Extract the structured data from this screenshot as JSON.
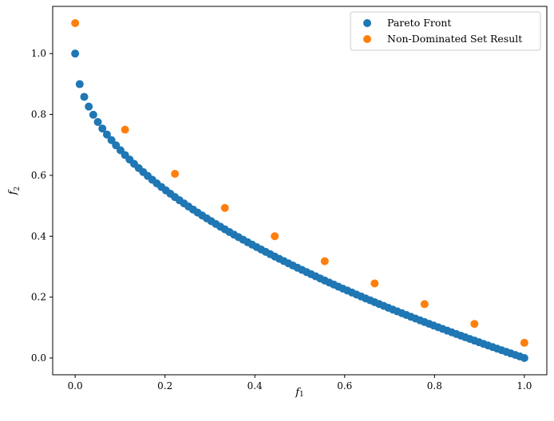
{
  "chart_data": {
    "type": "scatter",
    "title": "",
    "xlabel": "f",
    "xlabel_sub": "1",
    "ylabel": "f",
    "ylabel_sub": "2",
    "xlim": [
      -0.05,
      1.05
    ],
    "ylim": [
      -0.055,
      1.155
    ],
    "xticks": [
      0.0,
      0.2,
      0.4,
      0.6,
      0.8,
      1.0
    ],
    "xtick_labels": [
      "0.0",
      "0.2",
      "0.4",
      "0.6",
      "0.8",
      "1.0"
    ],
    "yticks": [
      0.0,
      0.2,
      0.4,
      0.6,
      0.8,
      1.0
    ],
    "ytick_labels": [
      "0.0",
      "0.2",
      "0.4",
      "0.6",
      "0.8",
      "1.0"
    ],
    "grid": false,
    "legend_position": "top-right",
    "series": [
      {
        "name": "Pareto Front",
        "color": "#1f77b4",
        "x": [
          0.0,
          0.0101,
          0.0202,
          0.0303,
          0.0404,
          0.0505,
          0.0606,
          0.0707,
          0.0808,
          0.0909,
          0.101,
          0.1111,
          0.1212,
          0.1313,
          0.1414,
          0.1515,
          0.1616,
          0.1717,
          0.1818,
          0.1919,
          0.202,
          0.2121,
          0.2222,
          0.2323,
          0.2424,
          0.2525,
          0.2626,
          0.2727,
          0.2828,
          0.2929,
          0.303,
          0.3131,
          0.3232,
          0.3333,
          0.3434,
          0.3535,
          0.3636,
          0.3737,
          0.3838,
          0.3939,
          0.404,
          0.4141,
          0.4242,
          0.4343,
          0.4444,
          0.4545,
          0.4646,
          0.4747,
          0.4848,
          0.4949,
          0.5051,
          0.5152,
          0.5253,
          0.5354,
          0.5455,
          0.5556,
          0.5657,
          0.5758,
          0.5859,
          0.596,
          0.6061,
          0.6162,
          0.6263,
          0.6364,
          0.6465,
          0.6566,
          0.6667,
          0.6768,
          0.6869,
          0.697,
          0.7071,
          0.7172,
          0.7273,
          0.7374,
          0.7475,
          0.7576,
          0.7677,
          0.7778,
          0.7879,
          0.798,
          0.8081,
          0.8182,
          0.8283,
          0.8384,
          0.8485,
          0.8586,
          0.8687,
          0.8788,
          0.8889,
          0.899,
          0.9091,
          0.9192,
          0.9293,
          0.9394,
          0.9495,
          0.9596,
          0.9697,
          0.9798,
          0.9899,
          1.0
        ],
        "y": [
          1.0,
          0.8995,
          0.8579,
          0.8259,
          0.799,
          0.7753,
          0.7538,
          0.7341,
          0.7157,
          0.6985,
          0.6822,
          0.6667,
          0.6519,
          0.6377,
          0.624,
          0.6108,
          0.598,
          0.5856,
          0.5736,
          0.5619,
          0.5505,
          0.5395,
          0.5286,
          0.5181,
          0.5077,
          0.4975,
          0.4876,
          0.4778,
          0.4682,
          0.4588,
          0.4495,
          0.4404,
          0.4315,
          0.4226,
          0.4139,
          0.4054,
          0.397,
          0.3887,
          0.3805,
          0.3724,
          0.3644,
          0.3565,
          0.3487,
          0.341,
          0.3333,
          0.3258,
          0.3184,
          0.311,
          0.3037,
          0.2965,
          0.2893,
          0.2822,
          0.2752,
          0.2683,
          0.2614,
          0.2546,
          0.2479,
          0.2412,
          0.2345,
          0.2279,
          0.2215,
          0.215,
          0.2086,
          0.2022,
          0.1959,
          0.1897,
          0.1835,
          0.1773,
          0.1712,
          0.1651,
          0.1591,
          0.1531,
          0.1472,
          0.1413,
          0.1354,
          0.1296,
          0.1238,
          0.1181,
          0.1124,
          0.1067,
          0.1011,
          0.0955,
          0.0899,
          0.0844,
          0.0789,
          0.0734,
          0.068,
          0.0626,
          0.0572,
          0.0519,
          0.0465,
          0.0413,
          0.036,
          0.0308,
          0.0256,
          0.0204,
          0.0153,
          0.0102,
          0.0051,
          0.0
        ]
      },
      {
        "name": "Non-Dominated Set Result",
        "color": "#ff7f0e",
        "x": [
          0.0,
          0.1111,
          0.2222,
          0.3333,
          0.4444,
          0.5556,
          0.6667,
          0.7778,
          0.8889,
          1.0
        ],
        "y": [
          1.1,
          0.75,
          0.605,
          0.493,
          0.4,
          0.318,
          0.245,
          0.177,
          0.112,
          0.05
        ]
      }
    ]
  }
}
